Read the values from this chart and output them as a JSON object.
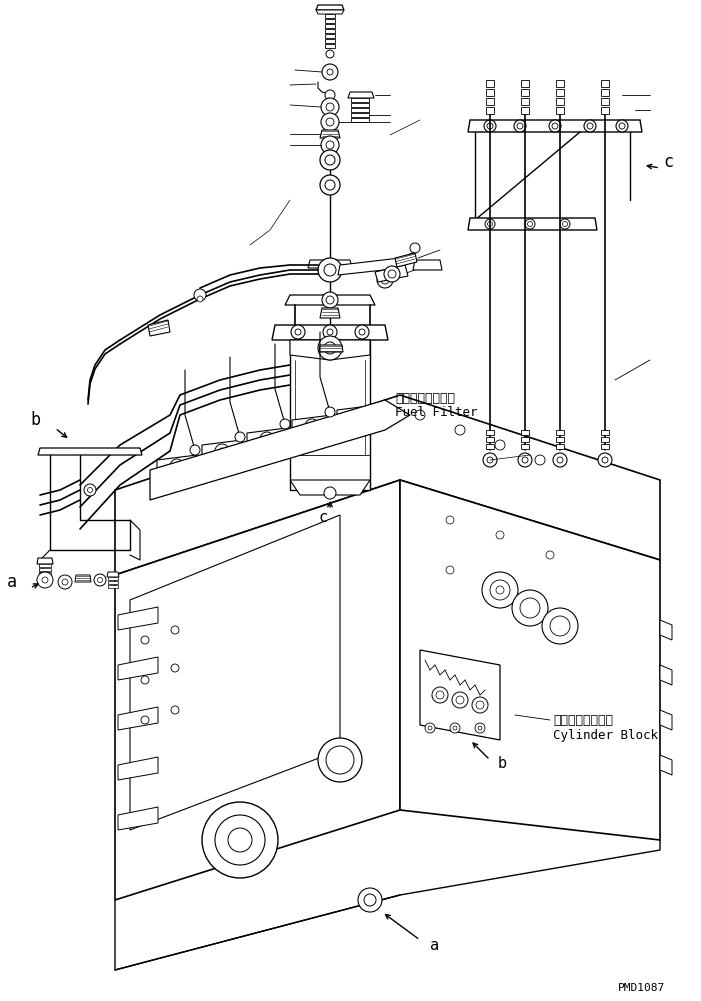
{
  "part_code": "PMD1087",
  "labels": {
    "fuel_filter_jp": "フェエルフィルタ",
    "fuel_filter_en": "Fuel Filter",
    "cylinder_block_jp": "シリンダブロック",
    "cylinder_block_en": "Cylinder Block"
  },
  "bg_color": "#ffffff",
  "line_color": "#000000"
}
